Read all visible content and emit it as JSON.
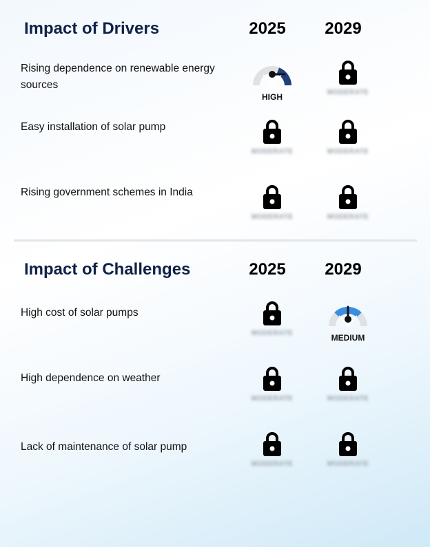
{
  "drivers": {
    "title": "Impact of Drivers",
    "year1": "2025",
    "year2": "2029",
    "rows": [
      {
        "label": "Rising dependence on renewable energy sources",
        "y2025": {
          "type": "gauge",
          "level": "high",
          "text": "HIGH",
          "color": "#1f3f7a"
        },
        "y2029": {
          "type": "lock",
          "hidden_text": "MODERATE"
        }
      },
      {
        "label": "Easy installation of solar pump",
        "y2025": {
          "type": "lock",
          "hidden_text": "MODERATE"
        },
        "y2029": {
          "type": "lock",
          "hidden_text": "MODERATE"
        }
      },
      {
        "label": "Rising government schemes in India",
        "y2025": {
          "type": "lock",
          "hidden_text": "MODERATE"
        },
        "y2029": {
          "type": "lock",
          "hidden_text": "MODERATE"
        }
      }
    ]
  },
  "challenges": {
    "title": "Impact of Challenges",
    "year1": "2025",
    "year2": "2029",
    "rows": [
      {
        "label": "High cost of solar pumps",
        "y2025": {
          "type": "lock",
          "hidden_text": "MODERATE"
        },
        "y2029": {
          "type": "gauge",
          "level": "medium",
          "text": "MEDIUM",
          "color": "#3a8ee0"
        }
      },
      {
        "label": "High dependence on weather",
        "y2025": {
          "type": "lock",
          "hidden_text": "MODERATE"
        },
        "y2029": {
          "type": "lock",
          "hidden_text": "MODERATE"
        }
      },
      {
        "label": "Lack of maintenance of solar pump",
        "y2025": {
          "type": "lock",
          "hidden_text": "MODERATE"
        },
        "y2029": {
          "type": "lock",
          "hidden_text": "MODERATE"
        }
      }
    ]
  },
  "icons": {
    "lock": "lock-icon",
    "gauge": "gauge-icon"
  }
}
